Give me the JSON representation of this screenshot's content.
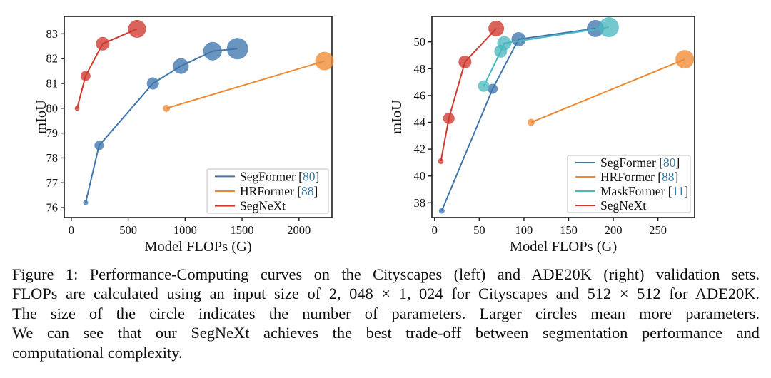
{
  "figure": {
    "caption_lines": [
      "Figure 1: Performance-Computing curves on the Cityscapes (left) and ADE20K (right) validation sets.",
      "FLOPs are calculated using an input size of 2, 048 × 1, 024 for Cityscapes and 512 × 512 for ADE20K.",
      "The size of the circle indicates the number of parameters.  Larger circles mean more parameters.",
      "We can see that our SegNeXt achieves the best trade-off between segmentation performance and",
      "computational complexity."
    ]
  },
  "colors": {
    "segformer": "#3f76ae",
    "hrformer": "#ee8a33",
    "maskformer": "#4ab8bf",
    "segnext": "#d0392e",
    "citation": "#3a7ca5",
    "axis": "#1a1a1a",
    "legend_border": "#cccccc"
  },
  "chart_data": [
    {
      "type": "line",
      "title": "Cityscapes validation set",
      "xlabel": "Model FLOPs (G)",
      "ylabel": "mIoU",
      "x_ticks": [
        0,
        500,
        1000,
        1500,
        2000
      ],
      "y_ticks": [
        76,
        77,
        78,
        79,
        80,
        81,
        82,
        83
      ],
      "xlim": [
        -62,
        2290
      ],
      "ylim": [
        75.6,
        83.7
      ],
      "grid": false,
      "legend_position": "lower right",
      "series": [
        {
          "name": "SegFormer",
          "cite": "80",
          "color": "#3f76ae",
          "points": [
            [
              126,
              76.2,
              3.5
            ],
            [
              244,
              78.5,
              6.5
            ],
            [
              717,
              81.0,
              8.5
            ],
            [
              963,
              81.7,
              11
            ],
            [
              1241,
              82.3,
              13
            ],
            [
              1460,
              82.4,
              15
            ]
          ]
        },
        {
          "name": "HRFormer",
          "cite": "88",
          "color": "#ee8a33",
          "points": [
            [
              836,
              80.0,
              5
            ],
            [
              2224,
              81.9,
              13
            ]
          ]
        },
        {
          "name": "SegNeXt",
          "cite": "",
          "color": "#d0392e",
          "points": [
            [
              51,
              80.0,
              3.5
            ],
            [
              125,
              81.3,
              7
            ],
            [
              276,
              82.6,
              9.5
            ],
            [
              578,
              83.2,
              12.5
            ]
          ]
        }
      ]
    },
    {
      "type": "line",
      "title": "ADE20K validation set",
      "xlabel": "Model FLOPs (G)",
      "ylabel": "mIoU",
      "x_ticks": [
        0,
        50,
        100,
        150,
        200,
        250
      ],
      "y_ticks": [
        38,
        40,
        42,
        44,
        46,
        48,
        50
      ],
      "xlim": [
        -3,
        291
      ],
      "ylim": [
        36.9,
        51.9
      ],
      "grid": false,
      "legend_position": "lower right",
      "series": [
        {
          "name": "SegFormer",
          "cite": "80",
          "color": "#3f76ae",
          "points": [
            [
              8,
              37.4,
              4
            ],
            [
              65,
              46.5,
              7
            ],
            [
              94,
              50.2,
              10
            ],
            [
              180,
              51.0,
              12
            ]
          ]
        },
        {
          "name": "HRFormer",
          "cite": "88",
          "color": "#ee8a33",
          "points": [
            [
              108,
              44.0,
              5
            ],
            [
              280,
              48.7,
              13
            ]
          ]
        },
        {
          "name": "MaskFormer",
          "cite": "11",
          "color": "#4ab8bf",
          "points": [
            [
              55,
              46.7,
              8
            ],
            [
              74,
              49.3,
              9
            ],
            [
              78,
              49.9,
              10
            ],
            [
              195,
              51.1,
              14
            ]
          ]
        },
        {
          "name": "SegNeXt",
          "cite": "",
          "color": "#d0392e",
          "points": [
            [
              7,
              41.1,
              4
            ],
            [
              16,
              44.3,
              8
            ],
            [
              34,
              48.5,
              9
            ],
            [
              69,
              51.0,
              11
            ]
          ]
        }
      ]
    }
  ]
}
